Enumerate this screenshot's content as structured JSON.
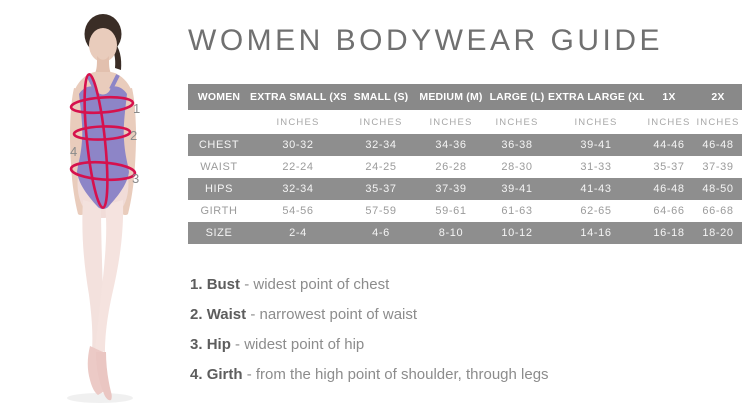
{
  "title": "WOMEN BODYWEAR GUIDE",
  "figure": {
    "description": "ballet-dancer-measurement-photo",
    "markers": {
      "bust": "1",
      "waist": "2",
      "hip": "3",
      "girth": "4"
    },
    "colors": {
      "measure_line": "#d6114d",
      "leotard": "#8d85c7",
      "skin": "#e9ccbc",
      "tights": "#f3e1dd",
      "shoes": "#eccac6",
      "hair": "#3a2d26"
    }
  },
  "table": {
    "header": [
      "WOMEN",
      "EXTRA SMALL (XS)",
      "SMALL (S)",
      "MEDIUM (M)",
      "LARGE (L)",
      "EXTRA LARGE (XL)",
      "1X",
      "2X"
    ],
    "units_row": [
      "",
      "INCHES",
      "INCHES",
      "INCHES",
      "INCHES",
      "INCHES",
      "INCHES",
      "INCHES"
    ],
    "rows": [
      {
        "label": "CHEST",
        "shaded": true,
        "values": [
          "30-32",
          "32-34",
          "34-36",
          "36-38",
          "39-41",
          "44-46",
          "46-48"
        ]
      },
      {
        "label": "WAIST",
        "shaded": false,
        "values": [
          "22-24",
          "24-25",
          "26-28",
          "28-30",
          "31-33",
          "35-37",
          "37-39"
        ]
      },
      {
        "label": "HIPS",
        "shaded": true,
        "values": [
          "32-34",
          "35-37",
          "37-39",
          "39-41",
          "41-43",
          "46-48",
          "48-50"
        ]
      },
      {
        "label": "GIRTH",
        "shaded": false,
        "values": [
          "54-56",
          "57-59",
          "59-61",
          "61-63",
          "62-65",
          "64-66",
          "66-68"
        ]
      },
      {
        "label": "SIZE",
        "shaded": true,
        "values": [
          "2-4",
          "4-6",
          "8-10",
          "10-12",
          "14-16",
          "16-18",
          "18-20"
        ]
      }
    ],
    "colors": {
      "header_bg": "#898989",
      "shaded_bg": "#8e8e8e",
      "header_text": "#ffffff",
      "light_text": "#9b9b9b"
    }
  },
  "legend": {
    "items": [
      {
        "num": "1.",
        "term": "Bust",
        "desc": "- widest point of chest"
      },
      {
        "num": "2.",
        "term": "Waist",
        "desc": "- narrowest point of waist"
      },
      {
        "num": "3.",
        "term": "Hip",
        "desc": "- widest point of hip"
      },
      {
        "num": "4.",
        "term": "Girth",
        "desc": "- from the high point of shoulder, through legs"
      }
    ]
  }
}
